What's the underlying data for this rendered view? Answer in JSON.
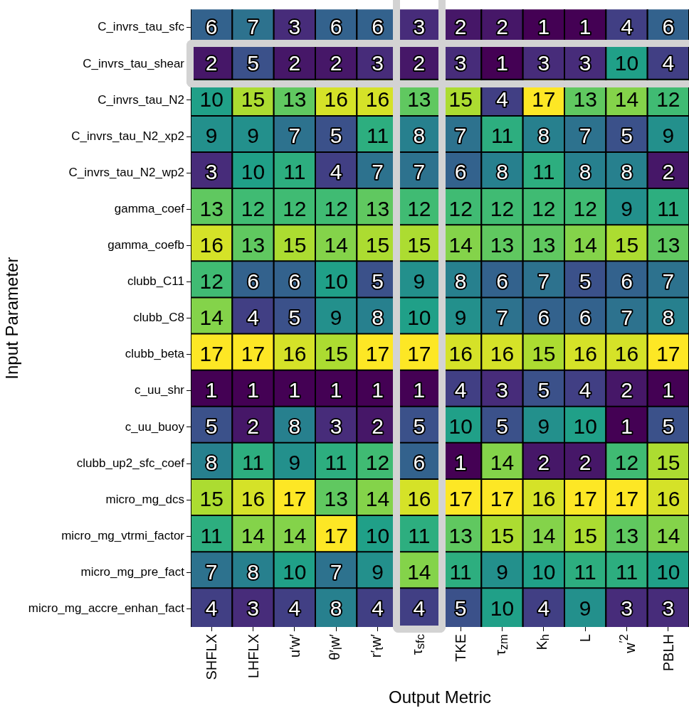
{
  "chart_data": {
    "type": "heatmap",
    "xlabel": "Output Metric",
    "ylabel": "Input Parameter",
    "categories": [
      "SHFLX",
      "LHFLX",
      "u′w′",
      "θ′$_{l}$w′",
      "r′$_{t}$w′",
      "τ$_{sfc}$",
      "TKE",
      "τ$_{zm}$",
      "K$_{h}$",
      "L",
      "w$^{′2}$",
      "PBLH"
    ],
    "y_categories": [
      "C_invrs_tau_sfc",
      "C_invrs_tau_shear",
      "C_invrs_tau_N2",
      "C_invrs_tau_N2_xp2",
      "C_invrs_tau_N2_wp2",
      "gamma_coef",
      "gamma_coefb",
      "clubb_C11",
      "clubb_C8",
      "clubb_beta",
      "c_uu_shr",
      "c_uu_buoy",
      "clubb_up2_sfc_coef",
      "micro_mg_dcs",
      "micro_mg_vtrmi_factor",
      "micro_mg_pre_fact",
      "micro_mg_accre_enhan_fact"
    ],
    "cells": [
      [
        6,
        7,
        3,
        6,
        6,
        3,
        2,
        2,
        1,
        1,
        4,
        6
      ],
      [
        2,
        5,
        2,
        2,
        3,
        2,
        3,
        1,
        3,
        3,
        10,
        4
      ],
      [
        10,
        15,
        13,
        16,
        16,
        13,
        15,
        4,
        17,
        13,
        14,
        12
      ],
      [
        9,
        9,
        7,
        5,
        11,
        8,
        7,
        11,
        8,
        7,
        5,
        9
      ],
      [
        3,
        10,
        11,
        4,
        7,
        7,
        6,
        8,
        11,
        8,
        8,
        2
      ],
      [
        13,
        12,
        12,
        12,
        13,
        12,
        12,
        12,
        12,
        12,
        9,
        11
      ],
      [
        16,
        13,
        15,
        14,
        15,
        15,
        14,
        13,
        13,
        14,
        15,
        13
      ],
      [
        12,
        6,
        6,
        10,
        5,
        9,
        8,
        6,
        7,
        5,
        6,
        7
      ],
      [
        14,
        4,
        5,
        9,
        8,
        10,
        9,
        7,
        6,
        6,
        7,
        8
      ],
      [
        17,
        17,
        16,
        15,
        17,
        17,
        16,
        16,
        15,
        16,
        16,
        17
      ],
      [
        1,
        1,
        1,
        1,
        1,
        1,
        4,
        3,
        5,
        4,
        2,
        1
      ],
      [
        5,
        2,
        8,
        3,
        2,
        5,
        10,
        5,
        9,
        10,
        1,
        5
      ],
      [
        8,
        11,
        9,
        11,
        12,
        6,
        1,
        14,
        2,
        2,
        12,
        15
      ],
      [
        15,
        16,
        17,
        13,
        14,
        16,
        17,
        17,
        16,
        17,
        17,
        16
      ],
      [
        11,
        14,
        14,
        17,
        10,
        11,
        13,
        15,
        14,
        15,
        13,
        14
      ],
      [
        7,
        8,
        10,
        7,
        9,
        14,
        11,
        9,
        10,
        11,
        11,
        10
      ],
      [
        4,
        3,
        4,
        8,
        4,
        4,
        5,
        10,
        4,
        9,
        3,
        3
      ]
    ],
    "data_labels": true
  }
}
